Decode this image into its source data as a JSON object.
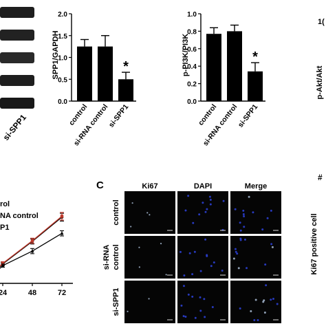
{
  "panels": {
    "c_letter": "C"
  },
  "chart_data": [
    {
      "type": "bar",
      "panel": "SPP1",
      "title": "",
      "categories": [
        "control",
        "si-RNA control",
        "si-SPP1"
      ],
      "values": [
        1.25,
        1.25,
        0.5
      ],
      "errors": [
        0.16,
        0.25,
        0.16
      ],
      "ylabel": "SPP1/GAPDH",
      "ylim": [
        0,
        2.0
      ],
      "yticks": [
        "0.0",
        "0.5",
        "1.0",
        "1.5",
        "2.0"
      ],
      "significance": [
        "",
        "",
        "*"
      ],
      "grid": false
    },
    {
      "type": "bar",
      "panel": "PI3K",
      "title": "",
      "categories": [
        "control",
        "si-RNA control",
        "si-SPP1"
      ],
      "values": [
        0.77,
        0.8,
        0.34
      ],
      "errors": [
        0.07,
        0.07,
        0.1
      ],
      "ylabel": "p-PI3K/PI3K",
      "ylim": [
        0,
        1.0
      ],
      "yticks": [
        "0.0",
        "0.2",
        "0.4",
        "0.6",
        "0.8",
        "1.0"
      ],
      "significance": [
        "",
        "",
        "*"
      ],
      "grid": false
    },
    {
      "type": "bar",
      "panel": "Akt",
      "title": "",
      "ylabel": "p-Akt/Akt",
      "ytick_visible": "1(",
      "grid": false
    },
    {
      "type": "line",
      "panel": "proliferation",
      "title": "",
      "x": [
        24,
        48,
        72
      ],
      "xticks": [
        "24",
        "48",
        "72"
      ],
      "legend_visible": [
        "rol",
        "NA control",
        "P1"
      ],
      "legend_placement": "top-left",
      "series": [
        {
          "values": [
            0.6,
            1.3,
            2.05
          ],
          "errors": [
            0.05,
            0.08,
            0.12
          ],
          "color": "#000000",
          "marker": "circle"
        },
        {
          "values": [
            0.62,
            1.32,
            2.08
          ],
          "errors": [
            0.05,
            0.08,
            0.12
          ],
          "color": "#c0392b",
          "marker": "square"
        },
        {
          "values": [
            0.55,
            1.0,
            1.55
          ],
          "errors": [
            0.05,
            0.08,
            0.08
          ],
          "color": "#000000",
          "marker": "triangle"
        }
      ],
      "ylim": [
        0,
        2.6
      ],
      "grid": false
    }
  ],
  "western_blot": {
    "lane_label_visible": "si-SPP1"
  },
  "micrographs": {
    "columns": [
      "Ki67",
      "DAPI",
      "Merge"
    ],
    "rows": [
      {
        "label_lines": [
          "control"
        ]
      },
      {
        "label_lines": [
          "si-RNA",
          "control"
        ]
      },
      {
        "label_lines": [
          "si-SPP1"
        ]
      }
    ]
  },
  "ki67_axis": {
    "ylabel": "Ki67 positive cell",
    "top_mark": "#"
  }
}
